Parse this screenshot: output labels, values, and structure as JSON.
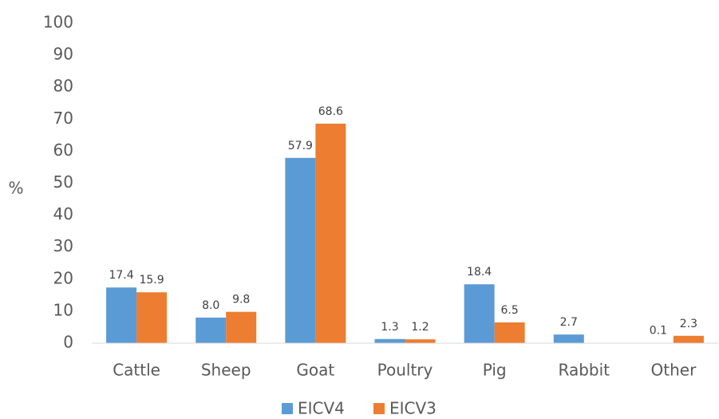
{
  "chart_data": {
    "type": "bar",
    "y_label": "%",
    "categories": [
      "Cattle",
      "Sheep",
      "Goat",
      "Poultry",
      "Pig",
      "Rabbit",
      "Other"
    ],
    "series": [
      {
        "name": "EICV4",
        "color": "#5b9bd5",
        "values": [
          17.4,
          8.0,
          57.9,
          1.3,
          18.4,
          2.7,
          0.1
        ],
        "value_labels": [
          "17.4",
          "8.0",
          "57.9",
          "1.3",
          "18.4",
          "2.7",
          "0.1"
        ]
      },
      {
        "name": "EICV3",
        "color": "#ed7d31",
        "values": [
          15.9,
          9.8,
          68.6,
          1.2,
          6.5,
          null,
          2.3
        ],
        "value_labels": [
          "15.9",
          "9.8",
          "68.6",
          "1.2",
          "6.5",
          null,
          "2.3"
        ]
      }
    ],
    "ylim": [
      0,
      100
    ],
    "yticks": [
      0,
      10,
      20,
      30,
      40,
      50,
      60,
      70,
      80,
      90,
      100
    ],
    "grid": false,
    "legend": "bottom"
  }
}
